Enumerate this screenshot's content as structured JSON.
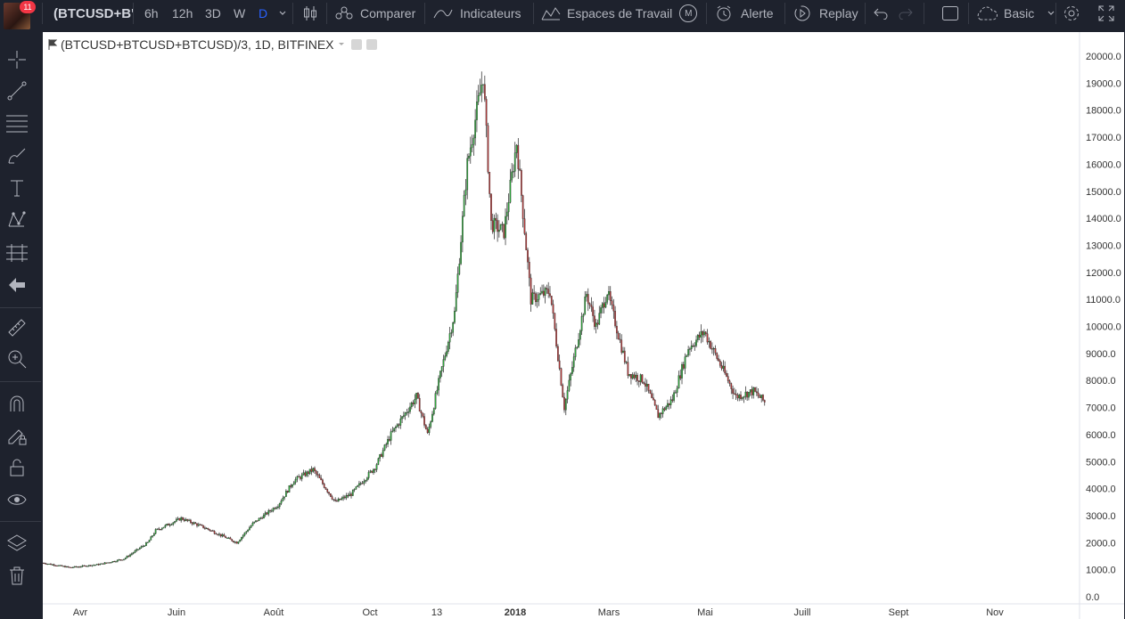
{
  "toolbar": {
    "badge": "11",
    "symbol": "(BTCUSD+B'",
    "intervals": [
      {
        "label": "6h",
        "active": false
      },
      {
        "label": "12h",
        "active": false
      },
      {
        "label": "3D",
        "active": false
      },
      {
        "label": "W",
        "active": false
      },
      {
        "label": "D",
        "active": true
      }
    ],
    "compare": "Comparer",
    "indicators": "Indicateurs",
    "workspaces": "Espaces de Travail",
    "workspaces_badge": "M",
    "alert": "Alerte",
    "replay": "Replay",
    "layout": "Basic"
  },
  "legend": {
    "title": "(BTCUSD+BTCUSD+BTCUSD)/3, 1D, BITFINEX"
  },
  "chart_data": {
    "type": "candlestick",
    "up_color": "#53b987",
    "down_color": "#eb4d5c",
    "candle_up_fill": "#2ea43b",
    "candle_down_fill": "#b33a3a",
    "y_ticks": [
      "20000.0",
      "19000.0",
      "18000.0",
      "17000.0",
      "16000.0",
      "15000.0",
      "14000.0",
      "13000.0",
      "12000.0",
      "11000.0",
      "10000.0",
      "9000.0",
      "8000.0",
      "7000.0",
      "6000.0",
      "5000.0",
      "4000.0",
      "3000.0",
      "2000.0",
      "1000.0",
      "0.0"
    ],
    "ylim": [
      0,
      20000
    ],
    "x_ticks": [
      "Avr",
      "Juin",
      "Août",
      "Oct",
      "13",
      "2018",
      "Mars",
      "Mai",
      "Juill",
      "Sept",
      "Nov"
    ],
    "x_ticks_bold": [
      "2018"
    ],
    "approx_close_path": [
      [
        "2017-03-15",
        1250
      ],
      [
        "2017-04-01",
        1080
      ],
      [
        "2017-04-20",
        1200
      ],
      [
        "2017-05-05",
        1400
      ],
      [
        "2017-05-20",
        2000
      ],
      [
        "2017-05-25",
        2450
      ],
      [
        "2017-06-10",
        2900
      ],
      [
        "2017-06-25",
        2550
      ],
      [
        "2017-07-15",
        2000
      ],
      [
        "2017-07-25",
        2700
      ],
      [
        "2017-08-10",
        3400
      ],
      [
        "2017-08-20",
        4300
      ],
      [
        "2017-09-01",
        4700
      ],
      [
        "2017-09-15",
        3500
      ],
      [
        "2017-09-25",
        3800
      ],
      [
        "2017-10-10",
        4800
      ],
      [
        "2017-10-20",
        6000
      ],
      [
        "2017-11-05",
        7400
      ],
      [
        "2017-11-12",
        6000
      ],
      [
        "2017-11-20",
        8200
      ],
      [
        "2017-11-29",
        10500
      ],
      [
        "2017-12-07",
        16000
      ],
      [
        "2017-12-17",
        19300
      ],
      [
        "2017-12-22",
        13800
      ],
      [
        "2017-12-30",
        13500
      ],
      [
        "2018-01-07",
        16800
      ],
      [
        "2018-01-16",
        11000
      ],
      [
        "2018-01-28",
        11300
      ],
      [
        "2018-02-06",
        7000
      ],
      [
        "2018-02-20",
        11200
      ],
      [
        "2018-02-26",
        10000
      ],
      [
        "2018-03-05",
        11300
      ],
      [
        "2018-03-18",
        8300
      ],
      [
        "2018-03-28",
        8000
      ],
      [
        "2018-04-06",
        6700
      ],
      [
        "2018-04-15",
        7300
      ],
      [
        "2018-04-25",
        9200
      ],
      [
        "2018-05-05",
        9800
      ],
      [
        "2018-05-15",
        8600
      ],
      [
        "2018-05-25",
        7400
      ],
      [
        "2018-06-05",
        7600
      ],
      [
        "2018-06-12",
        7200
      ]
    ]
  }
}
